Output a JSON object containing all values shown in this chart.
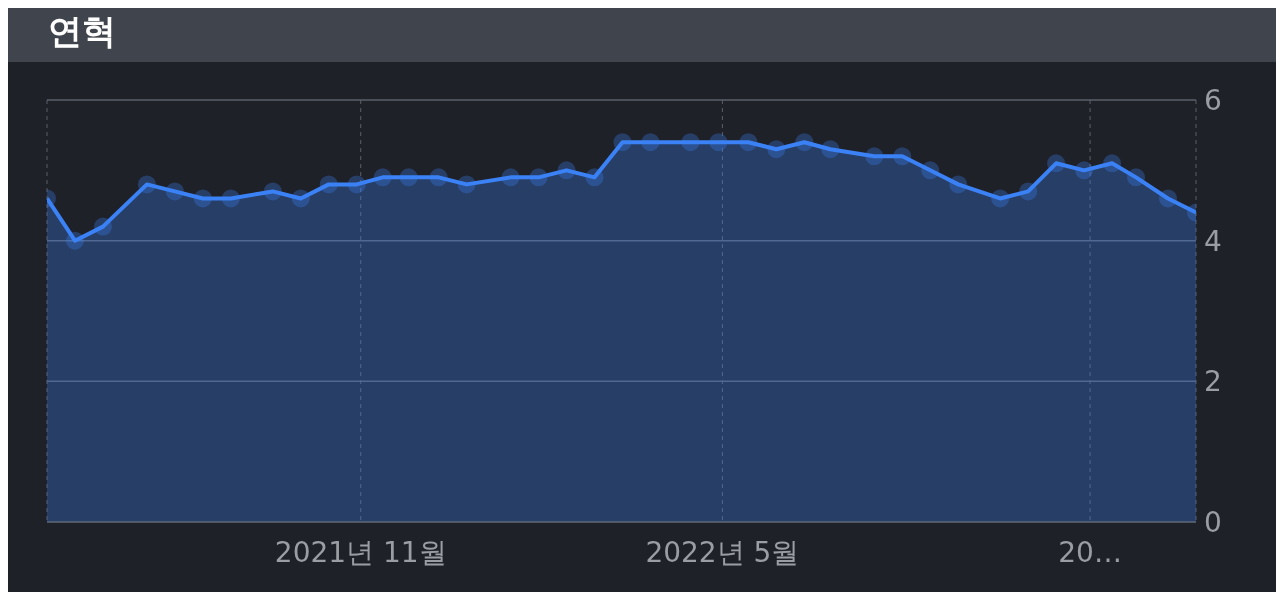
{
  "chart_data": {
    "type": "area",
    "title": "연혁",
    "x": [
      "2021-05-28",
      "2021-06-11",
      "2021-06-25",
      "2021-07-17",
      "2021-07-31",
      "2021-08-14",
      "2021-08-28",
      "2021-09-18",
      "2021-10-02",
      "2021-10-16",
      "2021-10-30",
      "2021-11-12",
      "2021-11-25",
      "2021-12-10",
      "2021-12-24",
      "2022-01-15",
      "2022-01-29",
      "2022-02-12",
      "2022-02-26",
      "2022-03-12",
      "2022-03-26",
      "2022-04-15",
      "2022-04-29",
      "2022-05-14",
      "2022-05-28",
      "2022-06-11",
      "2022-06-24",
      "2022-07-16",
      "2022-07-30",
      "2022-08-13",
      "2022-08-27",
      "2022-09-17",
      "2022-10-01",
      "2022-10-15",
      "2022-10-29",
      "2022-11-12",
      "2022-11-24",
      "2022-12-10",
      "2022-12-24"
    ],
    "values": [
      4.6,
      4.0,
      4.2,
      4.8,
      4.7,
      4.6,
      4.6,
      4.7,
      4.6,
      4.8,
      4.8,
      4.9,
      4.9,
      4.9,
      4.8,
      4.9,
      4.9,
      5.0,
      4.9,
      5.4,
      5.4,
      5.4,
      5.4,
      5.4,
      5.3,
      5.4,
      5.3,
      5.2,
      5.2,
      5.0,
      4.8,
      4.6,
      4.7,
      5.1,
      5.0,
      5.1,
      4.9,
      4.6,
      4.4
    ],
    "color": "#3b82f6",
    "xlim": [
      "2021-05-28",
      "2022-12-24"
    ],
    "xticks": [
      {
        "value": "2021-11-01",
        "label": "2021년 11월"
      },
      {
        "value": "2022-05-01",
        "label": "2022년 5월"
      },
      {
        "value": "2022-11-01",
        "label": "20…"
      }
    ],
    "ylim": [
      0,
      6
    ],
    "yticks": [
      0,
      2,
      4,
      6
    ],
    "grid": true,
    "marker": "circle",
    "line_style": "solid"
  }
}
